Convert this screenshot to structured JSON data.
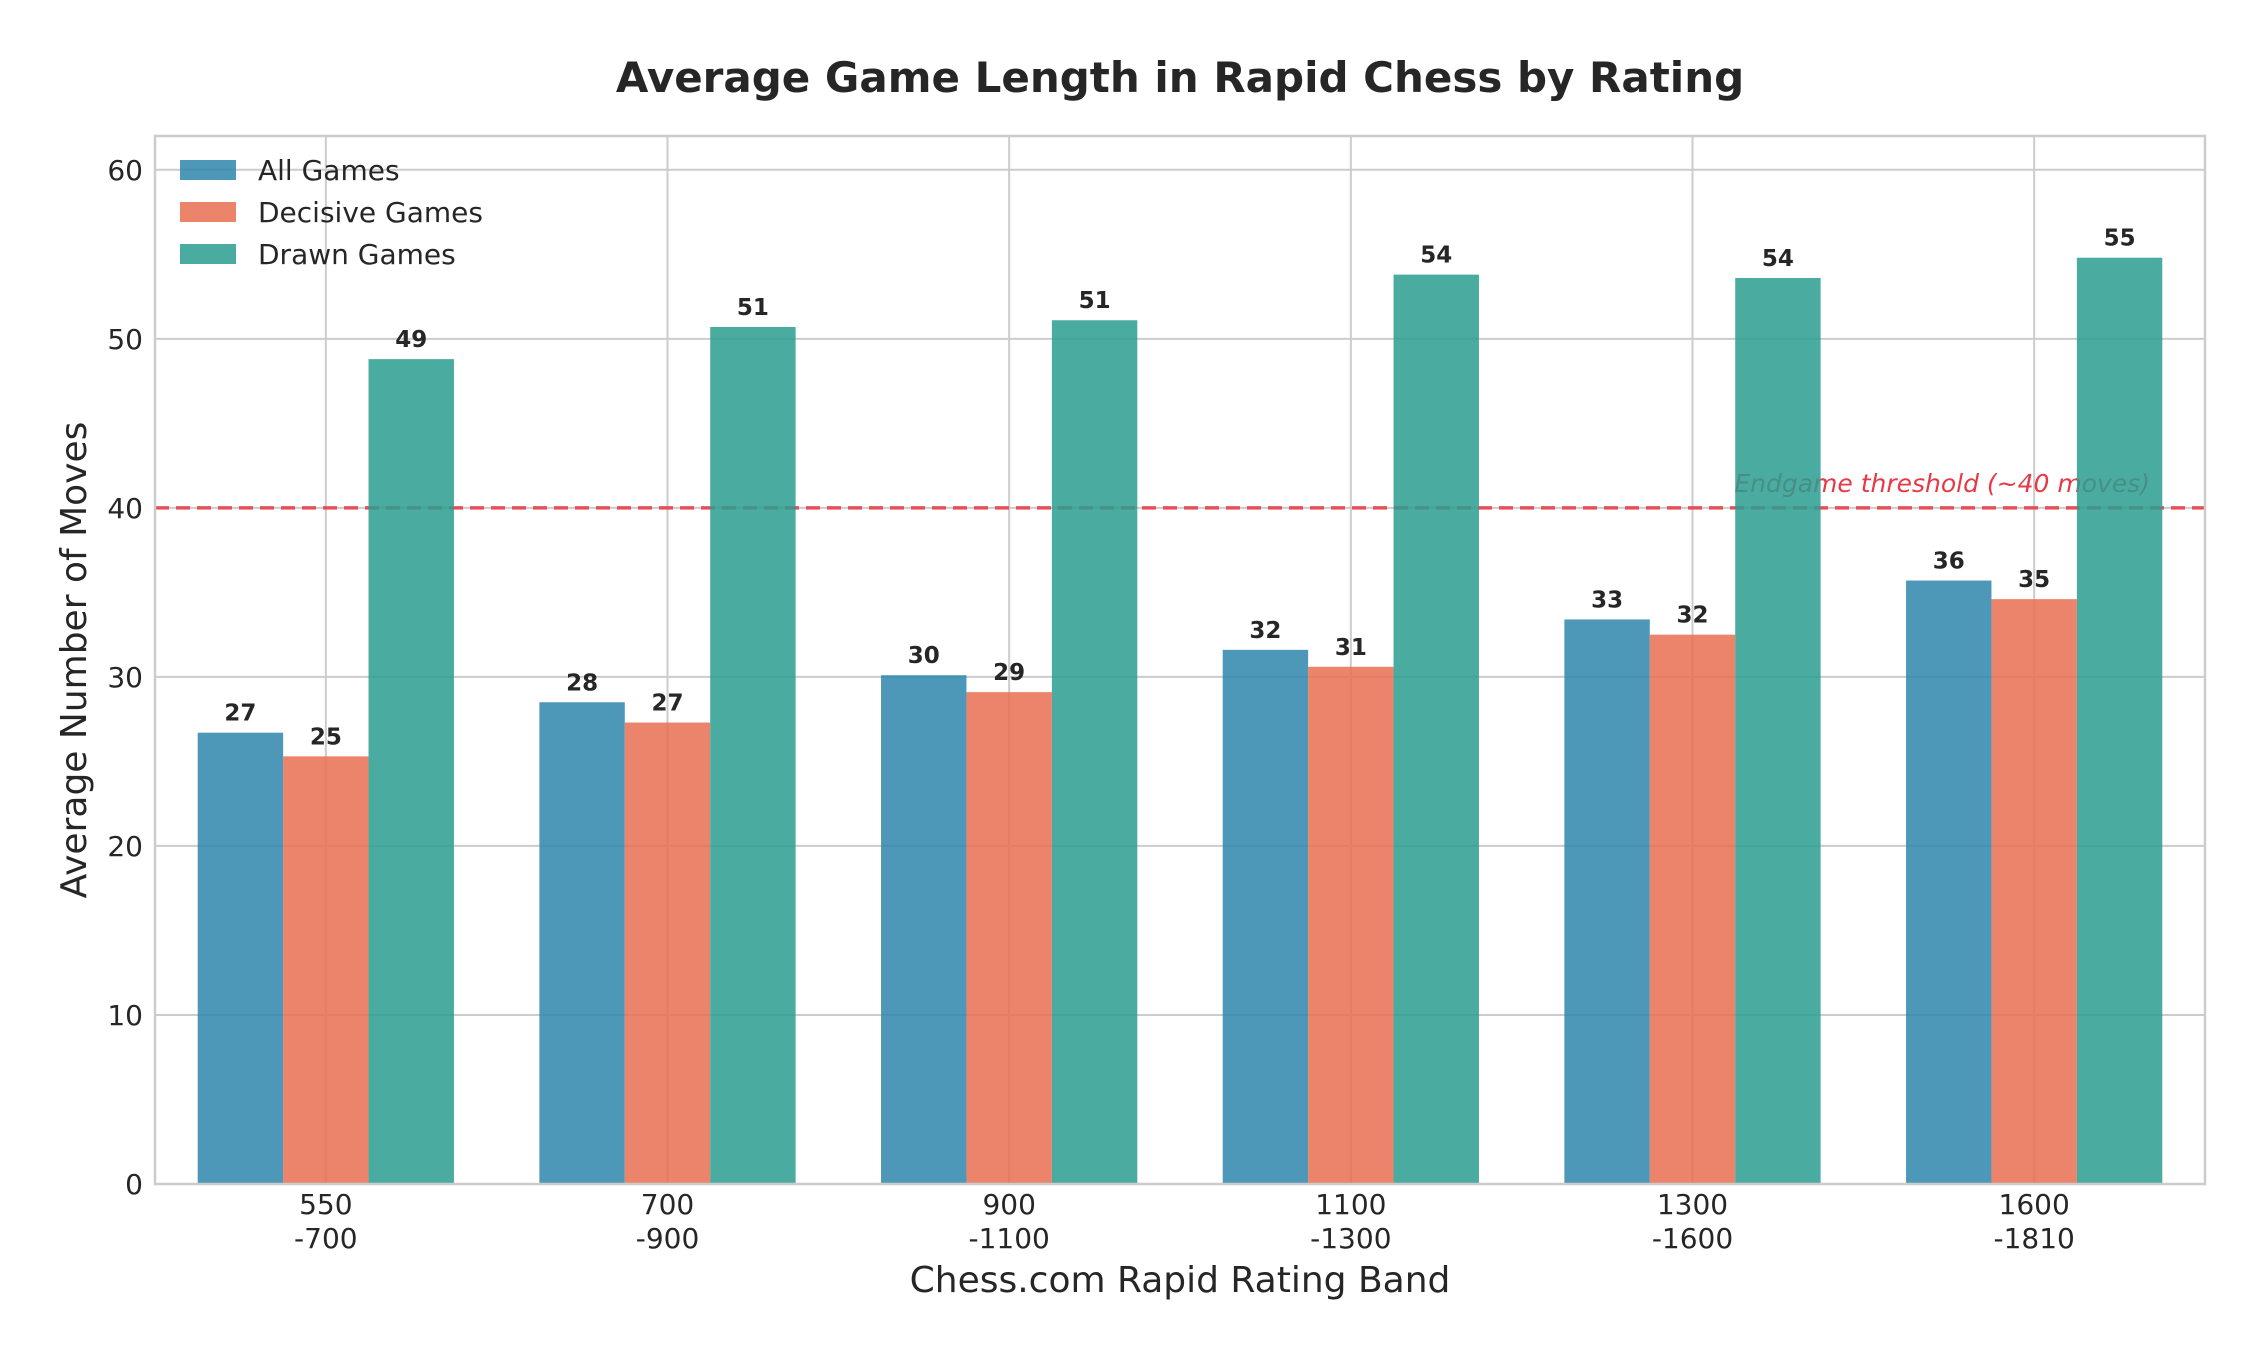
{
  "chart_data": {
    "type": "bar",
    "title": "Average Game Length in Rapid Chess by Rating",
    "xlabel": "Chess.com Rapid Rating Band",
    "ylabel": "Average Number of Moves",
    "categories": [
      [
        "550",
        "-700"
      ],
      [
        "700",
        "-900"
      ],
      [
        "900",
        "-1100"
      ],
      [
        "1100",
        "-1300"
      ],
      [
        "1300",
        "-1600"
      ],
      [
        "1600",
        "-1810"
      ]
    ],
    "ylim": [
      0,
      62
    ],
    "yticks": [
      0,
      10,
      20,
      30,
      40,
      50,
      60
    ],
    "grid": true,
    "legend_position": "top-left",
    "series": [
      {
        "name": "All Games",
        "color": "#2E86AB",
        "values": [
          26.7,
          28.5,
          30.1,
          31.6,
          33.4,
          35.7
        ],
        "labels": [
          "27",
          "28",
          "30",
          "32",
          "33",
          "36"
        ]
      },
      {
        "name": "Decisive Games",
        "color": "#E76F51",
        "values": [
          25.3,
          27.3,
          29.1,
          30.6,
          32.5,
          34.6
        ],
        "labels": [
          "25",
          "27",
          "29",
          "31",
          "32",
          "35"
        ]
      },
      {
        "name": "Drawn Games",
        "color": "#2A9D8F",
        "values": [
          48.8,
          50.7,
          51.1,
          53.8,
          53.6,
          54.8
        ],
        "labels": [
          "49",
          "51",
          "51",
          "54",
          "54",
          "55"
        ]
      }
    ],
    "threshold": {
      "value": 40,
      "label": "Endgame threshold (~40 moves)",
      "color": "#E63946"
    }
  }
}
